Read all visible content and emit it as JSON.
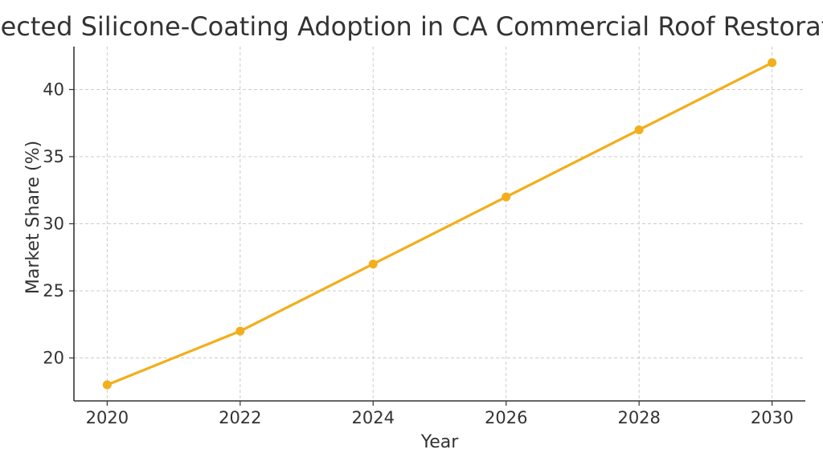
{
  "chart_data": {
    "type": "line",
    "title": "Projected Silicone-Coating Adoption in CA Commercial Roof Restoration",
    "xlabel": "Year",
    "ylabel": "Market Share (%)",
    "x": [
      2020,
      2022,
      2024,
      2026,
      2028,
      2030
    ],
    "series": [
      {
        "name": "Market Share",
        "values": [
          18,
          22,
          27,
          32,
          37,
          42
        ],
        "color": "#f2ae1c"
      }
    ],
    "xticks": [
      "2020",
      "2022",
      "2024",
      "2026",
      "2028",
      "2030"
    ],
    "yticks": [
      20,
      25,
      30,
      35,
      40
    ],
    "xlim": [
      2019.5,
      2030.5
    ],
    "ylim": [
      16.8,
      43.2
    ],
    "grid": true,
    "grid_style": "dashed",
    "marker": "circle"
  }
}
